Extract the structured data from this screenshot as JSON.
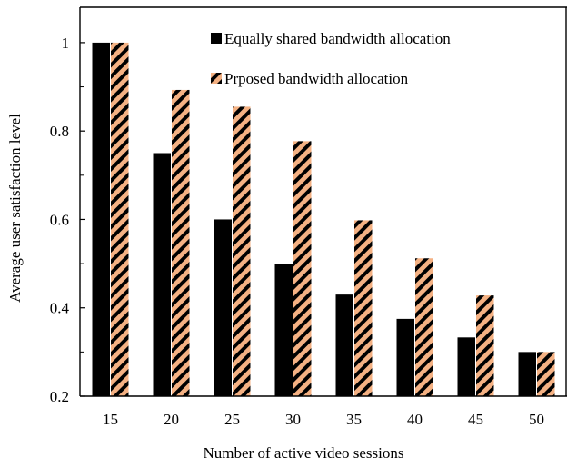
{
  "chart_data": {
    "type": "bar",
    "title": "",
    "xlabel": "Number of active video sessions",
    "ylabel": "Average user satisfaction level",
    "categories": [
      "15",
      "20",
      "25",
      "30",
      "35",
      "40",
      "45",
      "50"
    ],
    "ylim": [
      0.2,
      1.08
    ],
    "yticks": [
      "0.2",
      "0.4",
      "0.6",
      "0.8",
      "1"
    ],
    "yticks_values": [
      0.2,
      0.4,
      0.6,
      0.8,
      1.0
    ],
    "grid": false,
    "legend_position": "top-right (inside plot)",
    "series": [
      {
        "name": "Equally shared bandwidth allocation",
        "values": [
          1.0,
          0.75,
          0.6,
          0.5,
          0.43,
          0.375,
          0.333,
          0.3
        ],
        "fill": "solid",
        "color": "#000000"
      },
      {
        "name": "Prposed bandwidth allocation",
        "values": [
          1.0,
          0.893,
          0.855,
          0.777,
          0.598,
          0.512,
          0.428,
          0.3
        ],
        "fill": "diagonal-hatch",
        "color": "#f4b183",
        "hatch_color": "#000000"
      }
    ]
  }
}
